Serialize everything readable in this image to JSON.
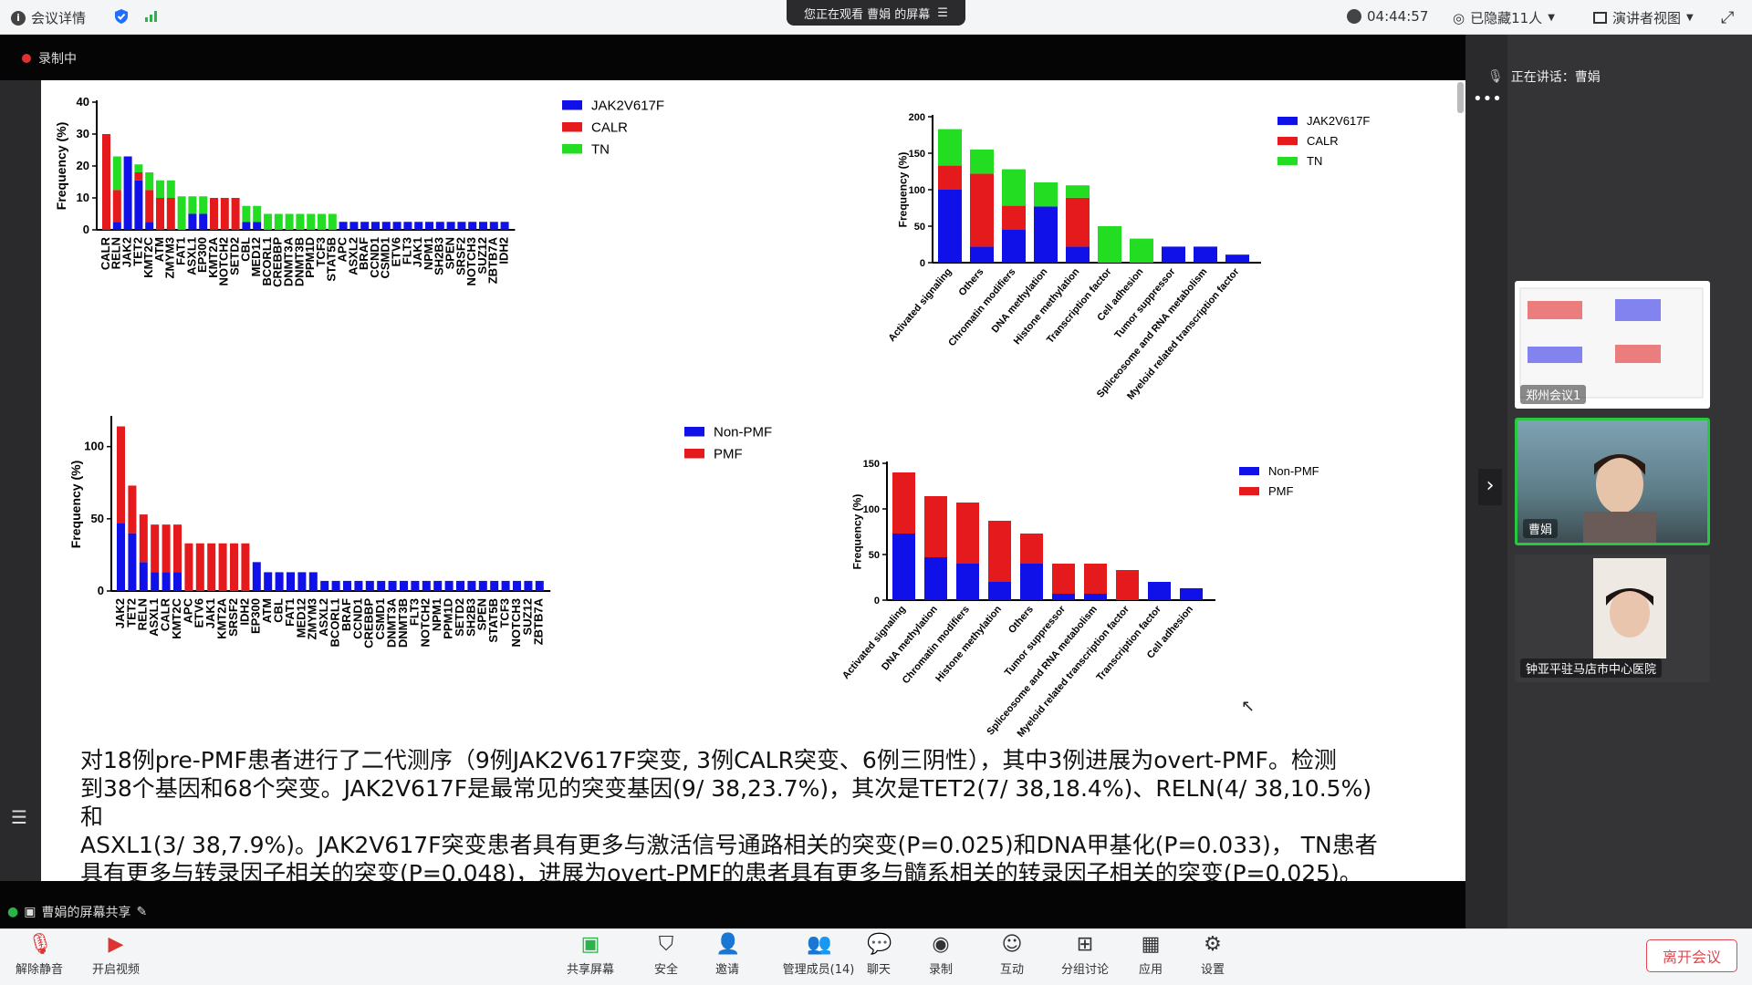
{
  "topbar": {
    "meeting_info": "会议详情",
    "share_status": "您正在观看 曹娟 的屏幕",
    "timer": "04:44:57",
    "hidden_count": "已隐藏11人",
    "view_mode": "演讲者视图"
  },
  "recording": {
    "label": "录制中"
  },
  "speaker": {
    "label": "正在讲话：曹娟"
  },
  "screen_share_label": "曹娟的屏幕共享",
  "participants": [
    {
      "name": "郑州会议1"
    },
    {
      "name": "曹娟"
    },
    {
      "name": "钟亚平驻马店市中心医院"
    }
  ],
  "toolbar": {
    "items": [
      {
        "label": "解除静音",
        "icon": "mic-off-icon"
      },
      {
        "label": "开启视频",
        "icon": "video-off-icon"
      },
      {
        "label": "共享屏幕",
        "icon": "share-screen-icon"
      },
      {
        "label": "安全",
        "icon": "shield-icon"
      },
      {
        "label": "邀请",
        "icon": "invite-icon"
      },
      {
        "label": "管理成员(14)",
        "icon": "members-icon"
      },
      {
        "label": "聊天",
        "icon": "chat-icon"
      },
      {
        "label": "录制",
        "icon": "record-icon"
      },
      {
        "label": "互动",
        "icon": "interact-icon"
      },
      {
        "label": "分组讨论",
        "icon": "breakout-icon"
      },
      {
        "label": "应用",
        "icon": "apps-icon"
      },
      {
        "label": "设置",
        "icon": "gear-icon"
      }
    ],
    "leave": "离开会议"
  },
  "colors": {
    "blue": "#1010e8",
    "red": "#e41a1c",
    "green": "#22dd22"
  },
  "slide": {
    "paragraph": [
      "对18例pre-PMF患者进行了二代测序（9例JAK2V617F突变, 3例CALR突变、6例三阴性），其中3例进展为overt-PMF。检测",
      "到38个基因和68个突变。JAK2V617F是最常见的突变基因(9/ 38,23.7%)，其次是TET2(7/ 38,18.4%)、RELN(4/ 38,10.5%)和",
      "ASXL1(3/ 38,7.9%)。JAK2V617F突变患者具有更多与激活信号通路相关的突变(P=0.025)和DNA甲基化(P=0.033)， TN患者",
      "具有更多与转录因子相关的突变(P=0.048)，进展为overt-PMF的患者具有更多与髓系相关的转录因子相关的突变(P=0.025)。"
    ]
  },
  "chart_data": [
    {
      "type": "bar",
      "stacked": true,
      "ylabel": "Frequency (%)",
      "ylim": [
        0,
        40
      ],
      "yticks": [
        0,
        10,
        20,
        30,
        40
      ],
      "categories": [
        "CALR",
        "RELN",
        "JAK2",
        "TET2",
        "KMT2C",
        "ATM",
        "ZMYM3",
        "FAT1",
        "ASXL1",
        "EP300",
        "KMT2A",
        "NOTCH2",
        "SETD2",
        "CBL",
        "MED12",
        "BCORL1",
        "CREBBP",
        "DNMT3A",
        "DNMT3B",
        "PPM1D",
        "TCF3",
        "STAT5B",
        "APC",
        "ASXL2",
        "BRAF",
        "CCND1",
        "CSMD1",
        "ETV6",
        "FLT3",
        "JAK1",
        "NPM1",
        "SH2B3",
        "SPEN",
        "SRSF2",
        "NOTCH3",
        "SUZ12",
        "ZBTB7A",
        "IDH2"
      ],
      "series": [
        {
          "name": "JAK2V617F",
          "color": "#1010e8",
          "values": [
            0,
            2.5,
            23,
            15.5,
            2.5,
            0,
            0,
            0,
            5,
            5,
            0,
            0,
            0,
            2.5,
            2.5,
            0,
            0,
            0,
            0,
            0,
            0,
            0,
            2.5,
            2.5,
            2.5,
            2.5,
            2.5,
            2.5,
            2.5,
            2.5,
            2.5,
            2.5,
            2.5,
            2.5,
            2.5,
            2.5,
            2.5,
            2.5
          ]
        },
        {
          "name": "CALR",
          "color": "#e41a1c",
          "values": [
            30,
            10,
            0,
            2.5,
            10,
            10,
            10,
            0,
            0,
            0,
            10,
            10,
            10,
            0,
            0,
            0,
            0,
            0,
            0,
            0,
            0,
            0,
            0,
            0,
            0,
            0,
            0,
            0,
            0,
            0,
            0,
            0,
            0,
            0,
            0,
            0,
            0,
            0
          ]
        },
        {
          "name": "TN",
          "color": "#22dd22",
          "values": [
            0,
            10.5,
            0,
            2.5,
            5.5,
            5.5,
            5.5,
            10.5,
            5.5,
            5.5,
            0,
            0,
            0,
            5,
            5,
            5,
            5,
            5,
            5,
            5,
            5,
            5,
            0,
            0,
            0,
            0,
            0,
            0,
            0,
            0,
            0,
            0,
            0,
            0,
            0,
            0,
            0,
            0
          ]
        }
      ]
    },
    {
      "type": "bar",
      "stacked": true,
      "ylabel": "Frequency (%)",
      "ylim": [
        0,
        200
      ],
      "yticks": [
        0,
        50,
        100,
        150,
        200
      ],
      "categories": [
        "Activated signaling",
        "Others",
        "Chromatin modifiers",
        "DNA methylation",
        "Histone methylation",
        "Transcription factor",
        "Cell adhesion",
        "Tumor suppressor",
        "Spliceosome and RNA metabolism",
        "Myeloid related transcription factor"
      ],
      "series": [
        {
          "name": "JAK2V617F",
          "color": "#1010e8",
          "values": [
            100,
            22,
            45,
            77,
            22,
            0,
            0,
            22,
            22,
            11
          ]
        },
        {
          "name": "CALR",
          "color": "#e41a1c",
          "values": [
            33,
            100,
            33,
            0,
            67,
            0,
            0,
            0,
            0,
            0
          ]
        },
        {
          "name": "TN",
          "color": "#22dd22",
          "values": [
            50,
            33,
            50,
            33,
            17,
            50,
            33,
            0,
            0,
            0
          ]
        }
      ]
    },
    {
      "type": "bar",
      "stacked": true,
      "ylabel": "Frequency (%)",
      "ylim": [
        0,
        120
      ],
      "yticks": [
        0,
        50,
        100
      ],
      "categories": [
        "JAK2",
        "TET2",
        "RELN",
        "ASXL1",
        "CALR",
        "KMT2C",
        "APC",
        "ETV6",
        "JAK1",
        "KMT2A",
        "SRSF2",
        "IDH2",
        "EP300",
        "ATM",
        "CBL",
        "FAT1",
        "MED12",
        "ZMYM3",
        "ASXL2",
        "BCORL1",
        "BRAF",
        "CCND1",
        "CREBBP",
        "CSMD1",
        "DNMT3A",
        "DNMT3B",
        "FLT3",
        "NOTCH2",
        "NPM1",
        "PPM1D",
        "SETD2",
        "SH2B3",
        "SPEN",
        "STAT5B",
        "TCF3",
        "NOTCH3",
        "SUZ12",
        "ZBTB7A"
      ],
      "series": [
        {
          "name": "Non-PMF",
          "color": "#1010e8",
          "values": [
            47,
            40,
            20,
            13,
            13,
            13,
            0,
            0,
            0,
            0,
            0,
            0,
            20,
            13,
            13,
            13,
            13,
            13,
            7,
            7,
            7,
            7,
            7,
            7,
            7,
            7,
            7,
            7,
            7,
            7,
            7,
            7,
            7,
            7,
            7,
            7,
            7,
            7
          ]
        },
        {
          "name": "PMF",
          "color": "#e41a1c",
          "values": [
            67,
            33,
            33,
            33,
            33,
            33,
            33,
            33,
            33,
            33,
            33,
            33,
            0,
            0,
            0,
            0,
            0,
            0,
            0,
            0,
            0,
            0,
            0,
            0,
            0,
            0,
            0,
            0,
            0,
            0,
            0,
            0,
            0,
            0,
            0,
            0,
            0,
            0
          ]
        }
      ]
    },
    {
      "type": "bar",
      "stacked": true,
      "ylabel": "Frequency (%)",
      "ylim": [
        0,
        150
      ],
      "yticks": [
        0,
        50,
        100,
        150
      ],
      "categories": [
        "Activated signaling",
        "DNA methylation",
        "Chromatin modifiers",
        "Histone methylation",
        "Others",
        "Tumor suppressor",
        "Spliceosome and RNA metabolism",
        "Myeloid related transcription factor",
        "Transcription factor",
        "Cell adhesion"
      ],
      "series": [
        {
          "name": "Non-PMF",
          "color": "#1010e8",
          "values": [
            73,
            47,
            40,
            20,
            40,
            7,
            7,
            0,
            20,
            13
          ]
        },
        {
          "name": "PMF",
          "color": "#e41a1c",
          "values": [
            67,
            67,
            67,
            67,
            33,
            33,
            33,
            33,
            0,
            0
          ]
        }
      ]
    }
  ]
}
